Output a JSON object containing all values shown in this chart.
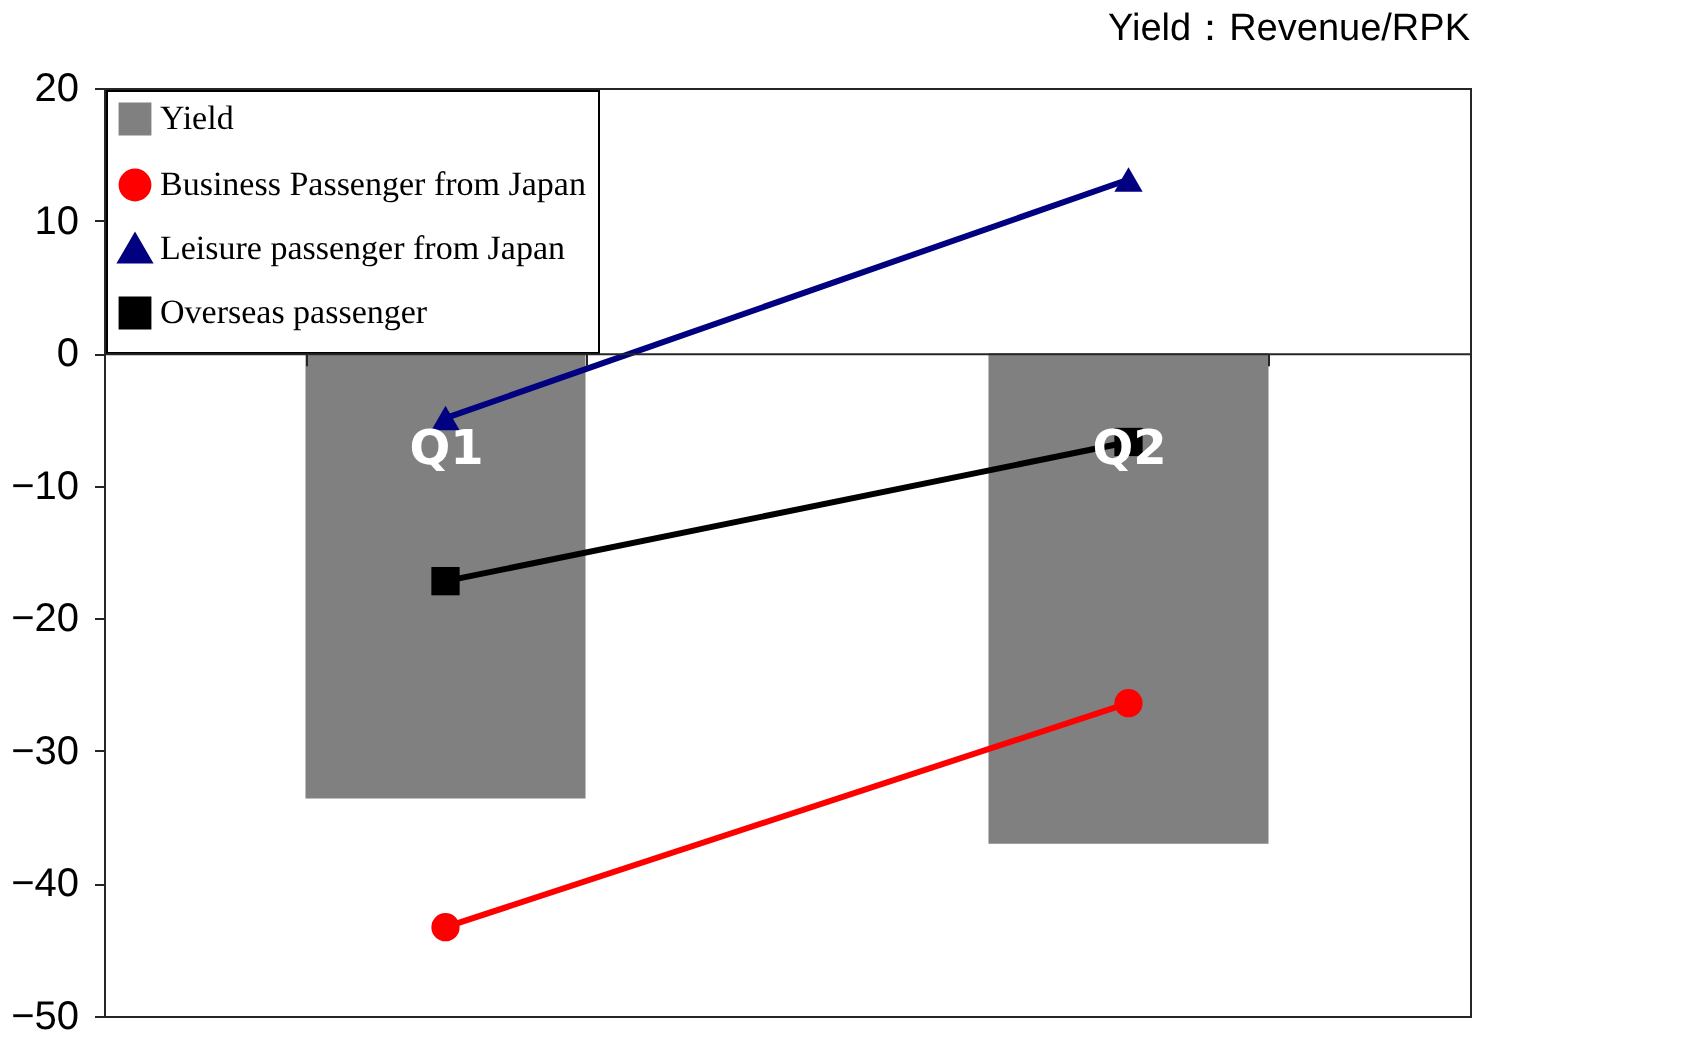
{
  "chart_data": {
    "type": "bar",
    "subtitle": "Yield：Revenue/RPK",
    "categories": [
      "Q1",
      "Q2"
    ],
    "series": [
      {
        "name": "Yield",
        "color": "#808080",
        "values": [
          -33.6,
          -37.0
        ]
      },
      {
        "name": "Business Passenger from Japan",
        "type": "line",
        "marker": "circle",
        "color": "#ff0000",
        "values": [
          -43.3,
          -26.4
        ]
      },
      {
        "name": "Leisure passenger from Japan",
        "type": "line",
        "marker": "triangle",
        "color": "#000080",
        "values": [
          -4.9,
          13.1
        ]
      },
      {
        "name": "Overseas passenger",
        "type": "line",
        "marker": "square",
        "color": "#000000",
        "values": [
          -17.2,
          -6.7
        ]
      }
    ],
    "ylim": [
      -50,
      20
    ],
    "yticks": [
      -50,
      -40,
      -30,
      -20,
      -10,
      0,
      10,
      20
    ],
    "grid": false,
    "legend": "top left"
  }
}
